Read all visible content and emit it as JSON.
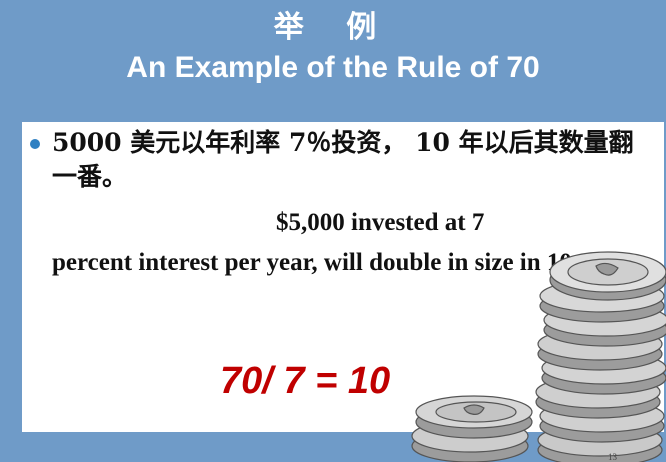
{
  "slide": {
    "title_cn": "举 例",
    "title_en": "An Example of the Rule of 70",
    "bullet_text_cn": "5000 美元以年利率 7％投资， 10 年以后其数量翻一番。",
    "bullet_text_en_line1": "$5,000 invested at 7",
    "bullet_text_en_line2": "percent interest per year, will double in size in 10 years",
    "formula": "70/ 7 = 10",
    "page_number": "13"
  },
  "colors": {
    "background": "#6f9bc8",
    "content_bg": "#ffffff",
    "bullet": "#2f80c2",
    "formula": "#c00000",
    "text": "#111111"
  },
  "icons": {
    "coins": "coin-stack-icon",
    "bullet": "bullet-dot-icon"
  }
}
